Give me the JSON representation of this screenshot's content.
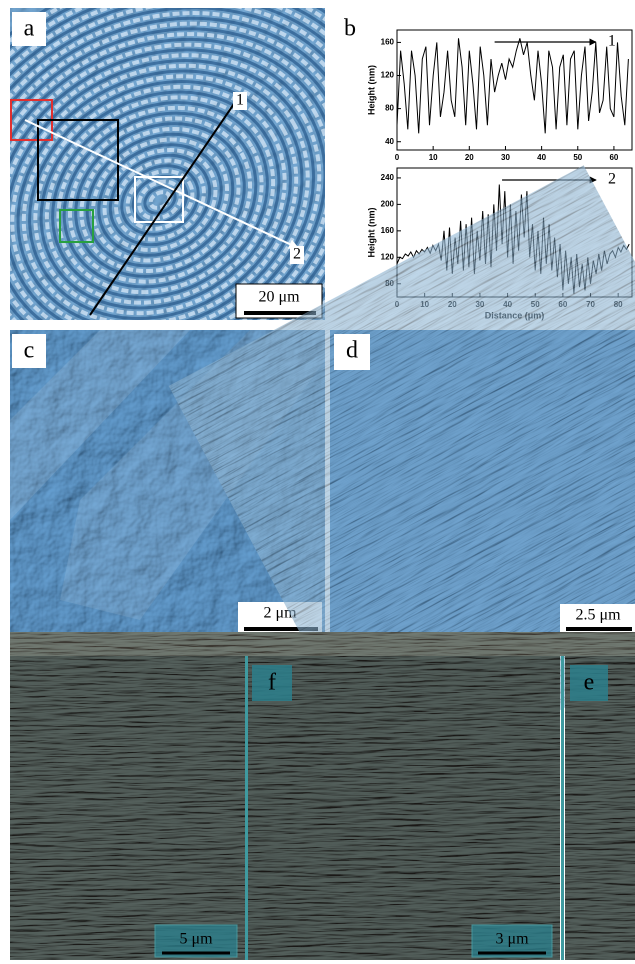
{
  "panels": {
    "a": {
      "label": "a",
      "scale_bar": "20 μm",
      "markers": [
        "1",
        "2"
      ]
    },
    "b": {
      "label": "b"
    },
    "c": {
      "label": "c",
      "scale_bar": "2 μm"
    },
    "d": {
      "label": "d",
      "scale_bar": "2.5 μm"
    },
    "bottom_left": {
      "scale_bar": "5 μm"
    },
    "f": {
      "label": "f",
      "scale_bar": "3 μm"
    },
    "e": {
      "label": "e"
    }
  },
  "chart_data": [
    {
      "type": "line",
      "ylabel": "Height (nm)",
      "annotation": "1",
      "color": "#000000",
      "x": [
        0,
        1,
        2,
        3,
        4,
        5,
        6,
        7,
        8,
        9,
        10,
        11,
        12,
        13,
        14,
        15,
        16,
        17,
        18,
        19,
        20,
        21,
        22,
        23,
        24,
        25,
        26,
        27,
        28,
        29,
        30,
        31,
        32,
        33,
        34,
        35,
        36,
        37,
        38,
        39,
        40,
        41,
        42,
        43,
        44,
        45,
        46,
        47,
        48,
        49,
        50,
        51,
        52,
        53,
        54,
        55,
        56,
        57,
        58,
        59,
        60,
        61,
        62,
        63,
        64
      ],
      "values": [
        60,
        150,
        110,
        55,
        150,
        120,
        50,
        140,
        155,
        60,
        120,
        160,
        70,
        100,
        150,
        90,
        70,
        165,
        130,
        60,
        150,
        110,
        55,
        155,
        120,
        60,
        140,
        100,
        120,
        135,
        115,
        140,
        130,
        150,
        165,
        145,
        160,
        120,
        90,
        150,
        110,
        50,
        150,
        130,
        55,
        130,
        145,
        60,
        140,
        150,
        55,
        120,
        155,
        65,
        100,
        160,
        75,
        90,
        155,
        80,
        70,
        160,
        95,
        60,
        140
      ],
      "xlim": [
        0,
        65
      ],
      "ylim": [
        30,
        175
      ],
      "xticks": [
        0,
        10,
        20,
        30,
        40,
        50,
        60
      ],
      "yticks": [
        40,
        80,
        120,
        160
      ]
    },
    {
      "type": "line",
      "ylabel": "Height (nm)",
      "xlabel": "Distance (μm)",
      "annotation": "2",
      "color": "#000000",
      "x": [
        0,
        1,
        2,
        3,
        4,
        5,
        6,
        7,
        8,
        9,
        10,
        11,
        12,
        13,
        14,
        15,
        16,
        17,
        18,
        19,
        20,
        21,
        22,
        23,
        24,
        25,
        26,
        27,
        28,
        29,
        30,
        31,
        32,
        33,
        34,
        35,
        36,
        37,
        38,
        39,
        40,
        41,
        42,
        43,
        44,
        45,
        46,
        47,
        48,
        49,
        50,
        51,
        52,
        53,
        54,
        55,
        56,
        57,
        58,
        59,
        60,
        61,
        62,
        63,
        64,
        65,
        66,
        67,
        68,
        69,
        70,
        71,
        72,
        73,
        74,
        75,
        76,
        77,
        78,
        79,
        80,
        81,
        82,
        83,
        84
      ],
      "values": [
        110,
        120,
        118,
        125,
        122,
        128,
        120,
        130,
        125,
        132,
        128,
        135,
        126,
        138,
        130,
        140,
        115,
        160,
        100,
        165,
        95,
        150,
        110,
        175,
        100,
        170,
        105,
        180,
        95,
        160,
        115,
        190,
        110,
        185,
        105,
        200,
        130,
        230,
        140,
        220,
        120,
        200,
        110,
        190,
        130,
        215,
        150,
        220,
        120,
        170,
        100,
        160,
        95,
        180,
        110,
        170,
        100,
        150,
        90,
        140,
        70,
        130,
        80,
        120,
        65,
        125,
        75,
        110,
        70,
        120,
        80,
        115,
        95,
        125,
        100,
        130,
        110,
        125,
        130,
        120,
        135,
        128,
        138,
        132,
        140
      ],
      "xlim": [
        0,
        85
      ],
      "ylim": [
        60,
        255
      ],
      "xticks": [
        0,
        10,
        20,
        30,
        40,
        50,
        60,
        70,
        80
      ],
      "yticks": [
        80,
        120,
        160,
        200,
        240
      ]
    }
  ]
}
